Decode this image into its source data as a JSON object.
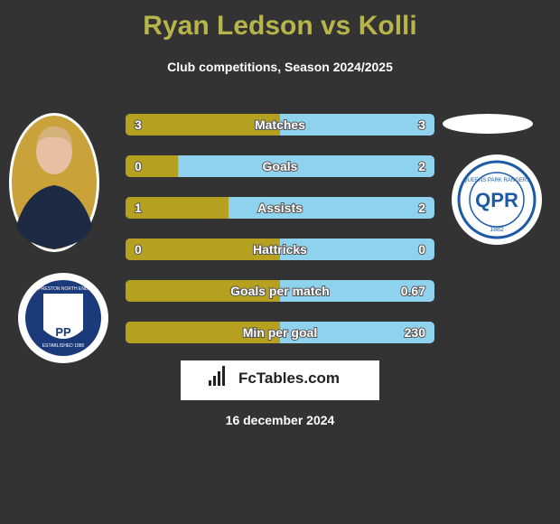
{
  "header": {
    "title": "Ryan Ledson vs Kolli",
    "subtitle": "Club competitions, Season 2024/2025"
  },
  "rows": [
    {
      "label": "Matches",
      "left": "3",
      "right": "3"
    },
    {
      "label": "Goals",
      "left": "0",
      "right": "2"
    },
    {
      "label": "Assists",
      "left": "1",
      "right": "2"
    },
    {
      "label": "Hattricks",
      "left": "0",
      "right": "0"
    },
    {
      "label": "Goals per match",
      "left": null,
      "right": "0.67"
    },
    {
      "label": "Min per goal",
      "left": null,
      "right": "230"
    }
  ],
  "logos": {
    "left_club": {
      "top": "PRESTON NORTH END",
      "initials": "PP",
      "bottom": "ESTABLISHED 1880"
    },
    "right_club": {
      "ring": "QUEENS PARK RANGERS",
      "year": "1882"
    }
  },
  "brand": "FcTables.com",
  "date": "16 december 2024"
}
